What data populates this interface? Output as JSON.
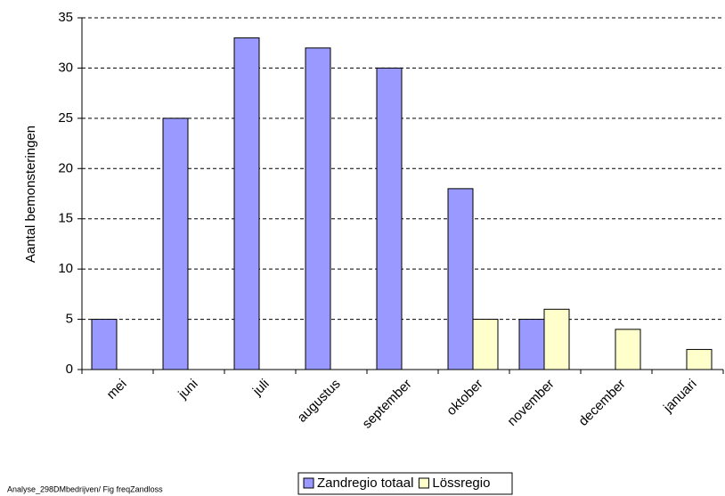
{
  "chart_data": {
    "type": "bar",
    "y_label": "Aantal bemonsteringen",
    "footnote": "Analyse_298DMbedrijven/ Fig freqZandloss",
    "categories": [
      "mei",
      "juni",
      "juli",
      "augustus",
      "september",
      "oktober",
      "november",
      "december",
      "januari"
    ],
    "series": [
      {
        "name": "Zandregio totaal",
        "color": "#9999ff",
        "values": [
          5,
          25,
          33,
          32,
          30,
          18,
          5,
          0,
          0
        ]
      },
      {
        "name": "Lössregio",
        "color": "#ffffcc",
        "values": [
          0,
          0,
          0,
          0,
          0,
          5,
          6,
          4,
          2
        ]
      }
    ],
    "ylim": [
      0,
      35
    ],
    "yticks": [
      0,
      5,
      10,
      15,
      20,
      25,
      30,
      35
    ],
    "grid": true,
    "legend": "bottom"
  }
}
